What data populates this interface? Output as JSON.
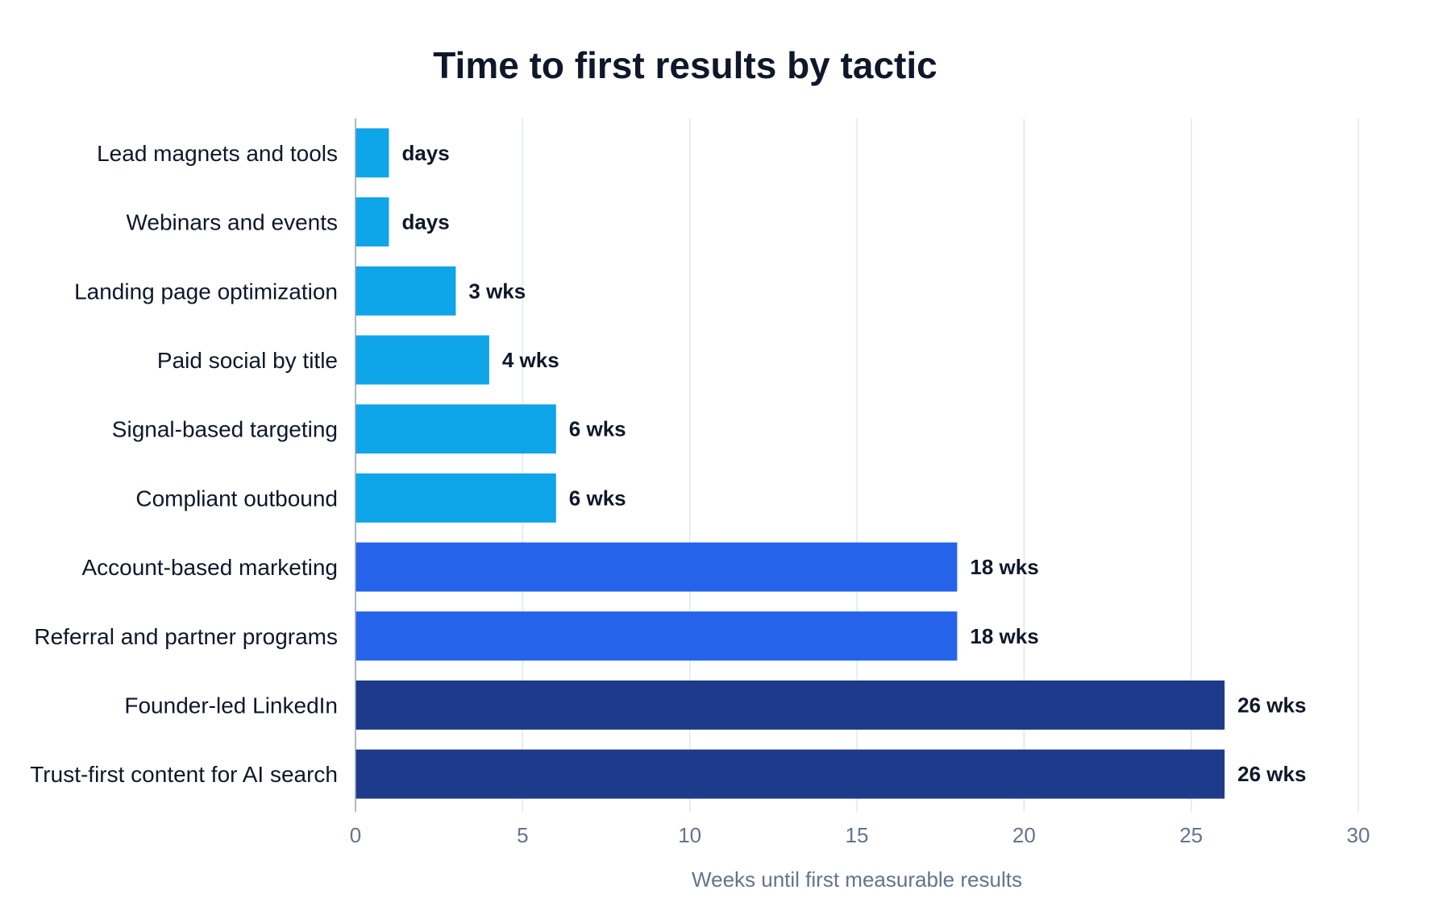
{
  "chart_data": {
    "type": "bar",
    "orientation": "horizontal",
    "title": "Time to first results by tactic",
    "xlabel": "Weeks until first measurable results",
    "ylabel": "",
    "xlim": [
      0,
      30
    ],
    "xticks": [
      0,
      5,
      10,
      15,
      20,
      25,
      30
    ],
    "grid": true,
    "categories": [
      "Lead magnets and tools",
      "Webinars and events",
      "Landing page optimization",
      "Paid social by title",
      "Signal-based targeting",
      "Compliant outbound",
      "Account-based marketing",
      "Referral and partner programs",
      "Founder-led LinkedIn",
      "Trust-first content for AI search"
    ],
    "values": [
      1,
      1,
      3,
      4,
      6,
      6,
      18,
      18,
      26,
      26
    ],
    "value_labels": [
      "days",
      "days",
      "3 wks",
      "4 wks",
      "6 wks",
      "6 wks",
      "18 wks",
      "18 wks",
      "26 wks",
      "26 wks"
    ],
    "colors": [
      "#0ea5e9",
      "#0ea5e9",
      "#0ea5e9",
      "#0ea5e9",
      "#0ea5e9",
      "#0ea5e9",
      "#2563eb",
      "#2563eb",
      "#1e3a8a",
      "#1e3a8a"
    ]
  }
}
